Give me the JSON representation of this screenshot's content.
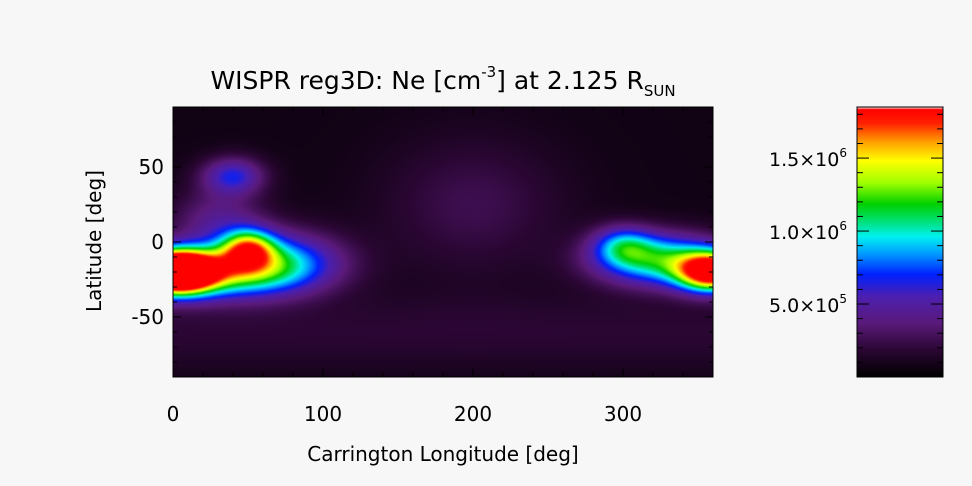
{
  "chart_data": {
    "type": "heatmap",
    "title": {
      "prefix": "WISPR reg3D: Ne [cm",
      "sup": "-3",
      "mid": "] at 2.125 R",
      "sub": "SUN"
    },
    "xlabel": "Carrington Longitude [deg]",
    "ylabel": "Latitude [deg]",
    "xlim": [
      0,
      360
    ],
    "ylim": [
      -90,
      90
    ],
    "x_ticks": [
      {
        "value": 0,
        "label": "0"
      },
      {
        "value": 100,
        "label": "100"
      },
      {
        "value": 200,
        "label": "200"
      },
      {
        "value": 300,
        "label": "300"
      }
    ],
    "y_ticks": [
      {
        "value": 50,
        "label": "50"
      },
      {
        "value": 0,
        "label": "0"
      },
      {
        "value": -50,
        "label": "-50"
      }
    ],
    "colorbar": {
      "range": [
        0,
        1850000
      ],
      "colormap": "idl-rainbow-black",
      "ticks": [
        {
          "value": 1500000,
          "mantissa": "1.5×10",
          "exponent": "6"
        },
        {
          "value": 1000000,
          "mantissa": "1.0×10",
          "exponent": "6"
        },
        {
          "value": 500000,
          "mantissa": "5.0×10",
          "exponent": "5"
        }
      ]
    },
    "features": [
      {
        "lon": 5,
        "lat": -20,
        "ne": 1820000
      },
      {
        "lon": 50,
        "lat": -5,
        "ne": 1750000
      },
      {
        "lon": 28,
        "lat": -22,
        "ne": 1150000
      },
      {
        "lon": 90,
        "lat": -20,
        "ne": 700000
      },
      {
        "lon": 40,
        "lat": 45,
        "ne": 520000
      },
      {
        "lon": 352,
        "lat": -20,
        "ne": 1820000
      },
      {
        "lon": 325,
        "lat": -18,
        "ne": 1250000
      },
      {
        "lon": 300,
        "lat": -5,
        "ne": 950000
      },
      {
        "lon": 200,
        "lat": 20,
        "ne": 90000
      }
    ]
  }
}
